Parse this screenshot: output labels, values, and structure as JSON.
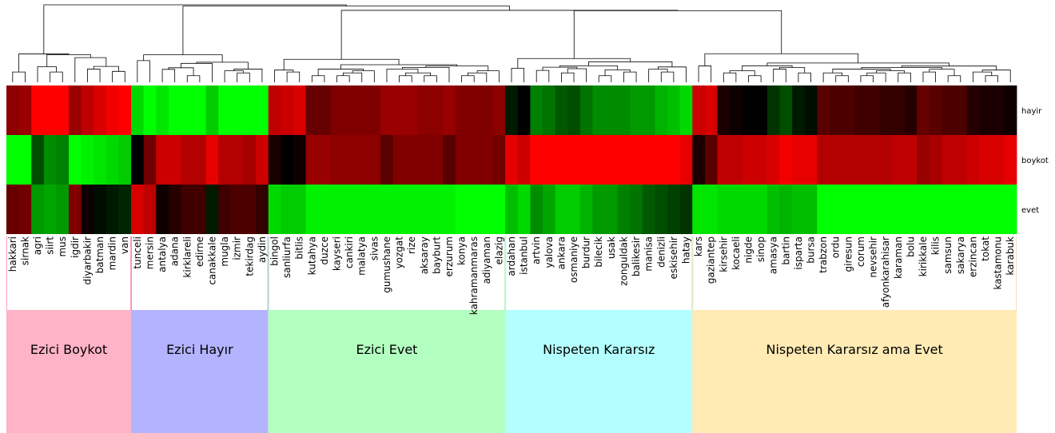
{
  "chart_data": {
    "type": "heatmap",
    "rows": [
      "hayir",
      "boykot",
      "evet"
    ],
    "columns": [
      "hakkari",
      "sirnak",
      "agri",
      "siirt",
      "mus",
      "igdir",
      "diyarbakir",
      "batman",
      "mardin",
      "van",
      "tunceli",
      "mersin",
      "antalya",
      "adana",
      "kirklareli",
      "edirne",
      "canakkale",
      "mugla",
      "izmir",
      "tekirdag",
      "aydin",
      "bingol",
      "sanliurfa",
      "bitlis",
      "kutahya",
      "duzce",
      "kayseri",
      "cankiri",
      "malatya",
      "sivas",
      "gumushane",
      "yozgat",
      "rize",
      "aksaray",
      "bayburt",
      "erzurum",
      "konya",
      "kahramanmaras",
      "adiyaman",
      "elazig",
      "ardahan",
      "istanbul",
      "artvin",
      "yalova",
      "ankara",
      "osmaniye",
      "burdur",
      "bilecik",
      "usak",
      "zonguldak",
      "balikesir",
      "manisa",
      "denizli",
      "eskisehir",
      "hatay",
      "kars",
      "gaziantep",
      "kirsehir",
      "kocaeli",
      "nigde",
      "sinop",
      "amasya",
      "bartin",
      "isparta",
      "bursa",
      "trabzon",
      "ordu",
      "giresun",
      "corum",
      "nevsehir",
      "afyonkarahisar",
      "karaman",
      "bolu",
      "kirikkale",
      "kilis",
      "samsun",
      "sakarya",
      "erzincan",
      "tokat",
      "kastamonu",
      "karabuk"
    ],
    "values": [
      [
        0.55,
        0.6,
        1.0,
        1.0,
        1.0,
        0.6,
        0.75,
        0.85,
        0.95,
        1.0,
        -0.85,
        -1.0,
        -0.9,
        -1.0,
        -1.0,
        -1.0,
        -0.8,
        -1.0,
        -1.0,
        -1.0,
        -1.0,
        0.75,
        0.8,
        0.85,
        0.4,
        0.4,
        0.5,
        0.5,
        0.5,
        0.5,
        0.6,
        0.6,
        0.6,
        0.55,
        0.55,
        0.6,
        0.5,
        0.5,
        0.5,
        0.55,
        -0.1,
        0.0,
        -0.5,
        -0.45,
        -0.35,
        -0.3,
        -0.45,
        -0.55,
        -0.55,
        -0.55,
        -0.6,
        -0.6,
        -0.7,
        -0.75,
        -0.85,
        0.8,
        0.85,
        0.1,
        0.05,
        0.0,
        0.0,
        -0.2,
        -0.3,
        -0.1,
        -0.05,
        0.35,
        0.3,
        0.3,
        0.25,
        0.25,
        0.2,
        0.2,
        0.15,
        0.4,
        0.35,
        0.3,
        0.3,
        0.15,
        0.1,
        0.1,
        0.05
      ],
      [
        -1.0,
        -1.0,
        -0.3,
        -0.55,
        -0.5,
        -1.0,
        -0.95,
        -0.9,
        -0.85,
        -0.8,
        0.0,
        0.45,
        0.8,
        0.8,
        0.7,
        0.7,
        0.9,
        0.7,
        0.7,
        0.65,
        0.8,
        0.1,
        0.0,
        0.05,
        0.6,
        0.6,
        0.55,
        0.55,
        0.55,
        0.55,
        0.35,
        0.5,
        0.5,
        0.5,
        0.5,
        0.35,
        0.5,
        0.5,
        0.5,
        0.45,
        0.9,
        0.8,
        1.0,
        1.0,
        1.0,
        1.0,
        1.0,
        1.0,
        1.0,
        1.0,
        1.0,
        1.0,
        1.0,
        1.0,
        0.9,
        0.1,
        0.35,
        0.75,
        0.75,
        0.8,
        0.8,
        0.85,
        0.95,
        0.9,
        0.9,
        0.7,
        0.7,
        0.7,
        0.7,
        0.7,
        0.7,
        0.75,
        0.75,
        0.6,
        0.65,
        0.75,
        0.75,
        0.8,
        0.85,
        0.85,
        0.9
      ],
      [
        0.4,
        0.45,
        -0.6,
        -0.65,
        -0.6,
        0.5,
        0.05,
        -0.05,
        -0.1,
        -0.15,
        0.85,
        0.75,
        0.05,
        0.15,
        0.25,
        0.25,
        -0.1,
        0.25,
        0.3,
        0.3,
        0.2,
        -0.85,
        -0.8,
        -0.8,
        -0.95,
        -0.95,
        -0.95,
        -0.95,
        -0.95,
        -0.95,
        -0.95,
        -0.95,
        -0.95,
        -0.95,
        -0.95,
        -0.95,
        -1.0,
        -1.0,
        -1.0,
        -1.0,
        -0.75,
        -0.85,
        -0.55,
        -0.65,
        -0.8,
        -0.8,
        -0.7,
        -0.6,
        -0.6,
        -0.5,
        -0.45,
        -0.35,
        -0.3,
        -0.25,
        -0.2,
        -0.9,
        -0.9,
        -0.85,
        -0.85,
        -0.85,
        -0.85,
        -0.75,
        -0.7,
        -0.75,
        -0.75,
        -1.0,
        -1.0,
        -1.0,
        -1.0,
        -1.0,
        -1.0,
        -1.0,
        -1.0,
        -1.0,
        -1.0,
        -1.0,
        -1.0,
        -1.0,
        -1.0,
        -1.0,
        -1.0
      ]
    ],
    "groups": [
      {
        "label": "Ezici Boykot",
        "start": 0,
        "end": 9,
        "color": "#ffb3c6",
        "border": "#ff99b3"
      },
      {
        "label": "Ezici Hayır",
        "start": 10,
        "end": 20,
        "color": "#b3b3ff",
        "border": "#b3a0e6"
      },
      {
        "label": "Ezici Evet",
        "start": 21,
        "end": 39,
        "color": "#b3ffc0",
        "border": "#b3f0c6"
      },
      {
        "label": "Nispeten Kararsız",
        "start": 40,
        "end": 54,
        "color": "#b3ffff",
        "border": "#b3f0e6"
      },
      {
        "label": "Nispeten Kararsız ama Evet",
        "start": 55,
        "end": 80,
        "color": "#ffebb3",
        "border": "#f0e0b3"
      }
    ],
    "colors": {
      "high": "#ff0000",
      "mid": "#000000",
      "low": "#00ff00"
    }
  }
}
